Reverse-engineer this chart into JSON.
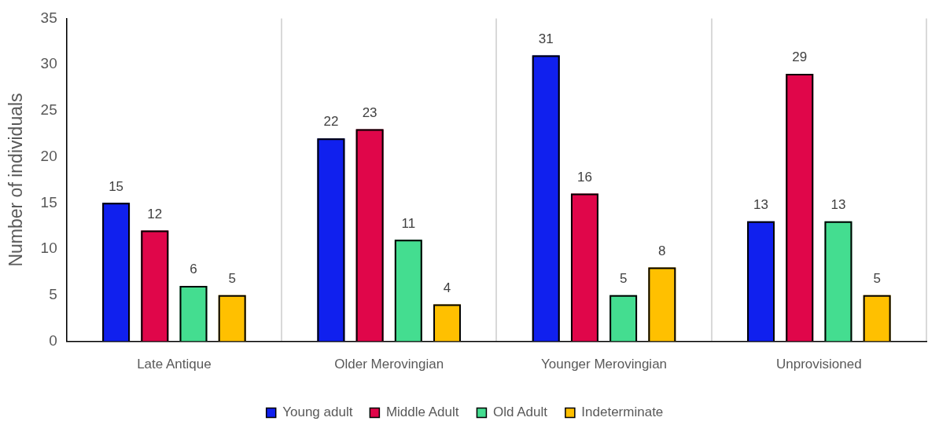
{
  "chart_data": {
    "type": "bar",
    "ylabel": "Number of individuals",
    "categories": [
      "Late Antique",
      "Older Merovingian",
      "Younger Merovingian",
      "Unprovisioned"
    ],
    "series": [
      {
        "name": "Young adult",
        "color": "#1020ee",
        "values": [
          15,
          22,
          31,
          13
        ]
      },
      {
        "name": "Middle Adult",
        "color": "#e0064a",
        "values": [
          12,
          23,
          16,
          29
        ]
      },
      {
        "name": "Old Adult",
        "color": "#44dd90",
        "values": [
          6,
          11,
          5,
          13
        ]
      },
      {
        "name": "Indeterminate",
        "color": "#ffc000",
        "values": [
          5,
          4,
          8,
          5
        ]
      }
    ],
    "ylim": [
      0,
      35
    ],
    "yticks": [
      0,
      5,
      10,
      15,
      20,
      25,
      30,
      35
    ],
    "grid": "x",
    "legend": "bottom",
    "data_labels": true
  }
}
